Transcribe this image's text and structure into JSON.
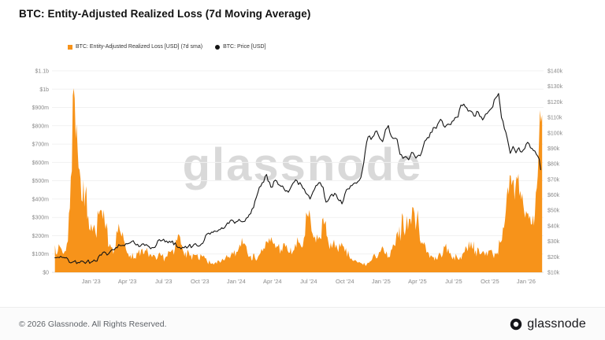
{
  "header": {
    "title": "BTC: Entity-Adjusted Realized Loss (7d Moving Average)"
  },
  "legend": {
    "items": [
      {
        "label": "BTC: Entity-Adjusted Realized Loss [USD] (7d sma)",
        "color": "#f7931a"
      },
      {
        "label": "BTC: Price [USD]",
        "color": "#141414"
      }
    ]
  },
  "watermark": "glassnode",
  "footer": {
    "copyright": "© 2026 Glassnode. All Rights Reserved.",
    "brand": "glassnode"
  },
  "chart_data": {
    "type": "area+line",
    "title": "BTC: Entity-Adjusted Realized Loss (7d Moving Average)",
    "xlim": [
      2022.73,
      2026.12
    ],
    "grid": "horizontal",
    "legend_position": "top-left",
    "x_ticks": [
      {
        "t": 2023.0,
        "label": "Jan '23"
      },
      {
        "t": 2023.25,
        "label": "Apr '23"
      },
      {
        "t": 2023.5,
        "label": "Jul '23"
      },
      {
        "t": 2023.75,
        "label": "Oct '23"
      },
      {
        "t": 2024.0,
        "label": "Jan '24"
      },
      {
        "t": 2024.25,
        "label": "Apr '24"
      },
      {
        "t": 2024.5,
        "label": "Jul '24"
      },
      {
        "t": 2024.75,
        "label": "Oct '24"
      },
      {
        "t": 2025.0,
        "label": "Jan '25"
      },
      {
        "t": 2025.25,
        "label": "Apr '25"
      },
      {
        "t": 2025.5,
        "label": "Jul '25"
      },
      {
        "t": 2025.75,
        "label": "Oct '25"
      },
      {
        "t": 2026.0,
        "label": "Jan '26"
      }
    ],
    "left_axis": {
      "unit": "USD",
      "lim": [
        0,
        1100
      ],
      "ticks": [
        {
          "v": 0,
          "label": "$0"
        },
        {
          "v": 100,
          "label": "$100m"
        },
        {
          "v": 200,
          "label": "$200m"
        },
        {
          "v": 300,
          "label": "$300m"
        },
        {
          "v": 400,
          "label": "$400m"
        },
        {
          "v": 500,
          "label": "$500m"
        },
        {
          "v": 600,
          "label": "$600m"
        },
        {
          "v": 700,
          "label": "$700m"
        },
        {
          "v": 800,
          "label": "$800m"
        },
        {
          "v": 900,
          "label": "$900m"
        },
        {
          "v": 1000,
          "label": "$1b"
        },
        {
          "v": 1100,
          "label": "$1.1b"
        }
      ]
    },
    "right_axis": {
      "unit": "USD",
      "lim": [
        10,
        140
      ],
      "ticks": [
        {
          "v": 10,
          "label": "$10k"
        },
        {
          "v": 20,
          "label": "$20k"
        },
        {
          "v": 30,
          "label": "$30k"
        },
        {
          "v": 40,
          "label": "$40k"
        },
        {
          "v": 50,
          "label": "$50k"
        },
        {
          "v": 60,
          "label": "$60k"
        },
        {
          "v": 70,
          "label": "$70k"
        },
        {
          "v": 80,
          "label": "$80k"
        },
        {
          "v": 90,
          "label": "$90k"
        },
        {
          "v": 100,
          "label": "$100k"
        },
        {
          "v": 110,
          "label": "$110k"
        },
        {
          "v": 120,
          "label": "$120k"
        },
        {
          "v": 130,
          "label": "$130k"
        },
        {
          "v": 140,
          "label": "$140k"
        }
      ]
    },
    "series": [
      {
        "name": "BTC: Entity-Adjusted Realized Loss [USD] (7d sma)",
        "type": "area",
        "axis": "left",
        "unit": "USD millions",
        "color": "#f7931a",
        "points": [
          [
            2022.75,
            150
          ],
          [
            2022.77,
            115
          ],
          [
            2022.79,
            135
          ],
          [
            2022.81,
            100
          ],
          [
            2022.84,
            170
          ],
          [
            2022.86,
            520
          ],
          [
            2022.88,
            1005
          ],
          [
            2022.9,
            810
          ],
          [
            2022.92,
            560
          ],
          [
            2022.94,
            385
          ],
          [
            2022.96,
            430
          ],
          [
            2022.98,
            310
          ],
          [
            2023.0,
            265
          ],
          [
            2023.03,
            215
          ],
          [
            2023.06,
            335
          ],
          [
            2023.08,
            290
          ],
          [
            2023.1,
            235
          ],
          [
            2023.13,
            155
          ],
          [
            2023.16,
            130
          ],
          [
            2023.19,
            265
          ],
          [
            2023.21,
            195
          ],
          [
            2023.24,
            125
          ],
          [
            2023.27,
            95
          ],
          [
            2023.3,
            78
          ],
          [
            2023.33,
            125
          ],
          [
            2023.36,
            98
          ],
          [
            2023.39,
            112
          ],
          [
            2023.42,
            82
          ],
          [
            2023.45,
            68
          ],
          [
            2023.48,
            92
          ],
          [
            2023.51,
            78
          ],
          [
            2023.54,
            112
          ],
          [
            2023.57,
            96
          ],
          [
            2023.6,
            208
          ],
          [
            2023.62,
            152
          ],
          [
            2023.65,
            112
          ],
          [
            2023.68,
            88
          ],
          [
            2023.71,
            96
          ],
          [
            2023.74,
            72
          ],
          [
            2023.77,
            86
          ],
          [
            2023.8,
            58
          ],
          [
            2023.83,
            46
          ],
          [
            2023.86,
            56
          ],
          [
            2023.89,
            52
          ],
          [
            2023.92,
            66
          ],
          [
            2023.95,
            86
          ],
          [
            2023.98,
            98
          ],
          [
            2024.01,
            112
          ],
          [
            2024.04,
            188
          ],
          [
            2024.07,
            142
          ],
          [
            2024.1,
            92
          ],
          [
            2024.13,
            78
          ],
          [
            2024.16,
            96
          ],
          [
            2024.19,
            132
          ],
          [
            2024.22,
            158
          ],
          [
            2024.25,
            168
          ],
          [
            2024.28,
            142
          ],
          [
            2024.31,
            128
          ],
          [
            2024.34,
            138
          ],
          [
            2024.37,
            108
          ],
          [
            2024.4,
            122
          ],
          [
            2024.43,
            162
          ],
          [
            2024.46,
            142
          ],
          [
            2024.49,
            312
          ],
          [
            2024.52,
            225
          ],
          [
            2024.55,
            162
          ],
          [
            2024.58,
            185
          ],
          [
            2024.6,
            298
          ],
          [
            2024.63,
            192
          ],
          [
            2024.66,
            132
          ],
          [
            2024.69,
            152
          ],
          [
            2024.72,
            138
          ],
          [
            2024.75,
            112
          ],
          [
            2024.78,
            88
          ],
          [
            2024.81,
            62
          ],
          [
            2024.84,
            52
          ],
          [
            2024.87,
            46
          ],
          [
            2024.9,
            42
          ],
          [
            2024.93,
            62
          ],
          [
            2024.96,
            88
          ],
          [
            2025.0,
            122
          ],
          [
            2025.03,
            98
          ],
          [
            2025.06,
            82
          ],
          [
            2025.09,
            148
          ],
          [
            2025.12,
            188
          ],
          [
            2025.15,
            308
          ],
          [
            2025.17,
            238
          ],
          [
            2025.2,
            292
          ],
          [
            2025.23,
            322
          ],
          [
            2025.26,
            252
          ],
          [
            2025.29,
            152
          ],
          [
            2025.32,
            112
          ],
          [
            2025.35,
            88
          ],
          [
            2025.38,
            72
          ],
          [
            2025.41,
            98
          ],
          [
            2025.44,
            138
          ],
          [
            2025.47,
            102
          ],
          [
            2025.5,
            88
          ],
          [
            2025.53,
            72
          ],
          [
            2025.56,
            98
          ],
          [
            2025.59,
            132
          ],
          [
            2025.62,
            168
          ],
          [
            2025.65,
            122
          ],
          [
            2025.68,
            98
          ],
          [
            2025.71,
            108
          ],
          [
            2025.74,
            118
          ],
          [
            2025.77,
            98
          ],
          [
            2025.8,
            108
          ],
          [
            2025.82,
            162
          ],
          [
            2025.84,
            245
          ],
          [
            2025.86,
            335
          ],
          [
            2025.88,
            425
          ],
          [
            2025.9,
            475
          ],
          [
            2025.92,
            395
          ],
          [
            2025.94,
            508
          ],
          [
            2025.96,
            445
          ],
          [
            2025.98,
            372
          ],
          [
            2026.0,
            335
          ],
          [
            2026.02,
            292
          ],
          [
            2026.04,
            262
          ],
          [
            2026.06,
            315
          ],
          [
            2026.08,
            525
          ],
          [
            2026.095,
            885
          ],
          [
            2026.11,
            860
          ]
        ]
      },
      {
        "name": "BTC: Price [USD]",
        "type": "line",
        "axis": "right",
        "unit": "USD thousands",
        "color": "#141414",
        "points": [
          [
            2022.75,
            19.4
          ],
          [
            2022.79,
            20.3
          ],
          [
            2022.82,
            19.3
          ],
          [
            2022.85,
            16.4
          ],
          [
            2022.88,
            16.9
          ],
          [
            2022.91,
            16.4
          ],
          [
            2022.94,
            17.2
          ],
          [
            2022.97,
            16.8
          ],
          [
            2023.0,
            16.6
          ],
          [
            2023.03,
            17.2
          ],
          [
            2023.06,
            21.2
          ],
          [
            2023.09,
            23.2
          ],
          [
            2023.12,
            21.9
          ],
          [
            2023.16,
            24.6
          ],
          [
            2023.19,
            27.9
          ],
          [
            2023.22,
            27.4
          ],
          [
            2023.25,
            28.4
          ],
          [
            2023.28,
            29.9
          ],
          [
            2023.31,
            27.6
          ],
          [
            2023.34,
            26.9
          ],
          [
            2023.37,
            27.3
          ],
          [
            2023.4,
            26.5
          ],
          [
            2023.43,
            25.9
          ],
          [
            2023.46,
            30.4
          ],
          [
            2023.49,
            30.6
          ],
          [
            2023.52,
            30.2
          ],
          [
            2023.55,
            29.3
          ],
          [
            2023.58,
            29.1
          ],
          [
            2023.61,
            26.1
          ],
          [
            2023.64,
            25.8
          ],
          [
            2023.67,
            26.6
          ],
          [
            2023.7,
            26.8
          ],
          [
            2023.73,
            27.2
          ],
          [
            2023.76,
            28.3
          ],
          [
            2023.79,
            33.8
          ],
          [
            2023.82,
            34.6
          ],
          [
            2023.85,
            36.7
          ],
          [
            2023.88,
            37.4
          ],
          [
            2023.91,
            38.2
          ],
          [
            2023.94,
            41.9
          ],
          [
            2023.97,
            43.8
          ],
          [
            2024.0,
            42.6
          ],
          [
            2024.03,
            43.1
          ],
          [
            2024.06,
            42.9
          ],
          [
            2024.09,
            47.2
          ],
          [
            2024.12,
            51.8
          ],
          [
            2024.15,
            61.5
          ],
          [
            2024.18,
            67.8
          ],
          [
            2024.21,
            73.1
          ],
          [
            2024.24,
            64.9
          ],
          [
            2024.27,
            69.5
          ],
          [
            2024.3,
            66.2
          ],
          [
            2024.33,
            63.9
          ],
          [
            2024.36,
            61.7
          ],
          [
            2024.39,
            67.3
          ],
          [
            2024.42,
            69.0
          ],
          [
            2024.45,
            66.3
          ],
          [
            2024.48,
            61.2
          ],
          [
            2024.51,
            57.3
          ],
          [
            2024.54,
            63.5
          ],
          [
            2024.57,
            67.8
          ],
          [
            2024.6,
            64.8
          ],
          [
            2024.62,
            55.3
          ],
          [
            2024.65,
            59.4
          ],
          [
            2024.68,
            61.0
          ],
          [
            2024.71,
            56.2
          ],
          [
            2024.73,
            54.2
          ],
          [
            2024.76,
            63.2
          ],
          [
            2024.79,
            65.9
          ],
          [
            2024.82,
            67.7
          ],
          [
            2024.85,
            69.4
          ],
          [
            2024.87,
            75.6
          ],
          [
            2024.89,
            88.0
          ],
          [
            2024.91,
            97.4
          ],
          [
            2024.93,
            95.7
          ],
          [
            2024.95,
            98.1
          ],
          [
            2024.97,
            101.2
          ],
          [
            2024.99,
            96.5
          ],
          [
            2025.01,
            94.3
          ],
          [
            2025.03,
            102.1
          ],
          [
            2025.05,
            104.7
          ],
          [
            2025.07,
            97.8
          ],
          [
            2025.09,
            96.4
          ],
          [
            2025.11,
            95.8
          ],
          [
            2025.13,
            86.1
          ],
          [
            2025.16,
            84.3
          ],
          [
            2025.19,
            82.6
          ],
          [
            2025.21,
            87.4
          ],
          [
            2025.24,
            83.7
          ],
          [
            2025.27,
            85.2
          ],
          [
            2025.3,
            94.6
          ],
          [
            2025.33,
            96.9
          ],
          [
            2025.36,
            103.4
          ],
          [
            2025.38,
            102.9
          ],
          [
            2025.41,
            108.7
          ],
          [
            2025.44,
            103.6
          ],
          [
            2025.47,
            105.4
          ],
          [
            2025.5,
            107.9
          ],
          [
            2025.53,
            110.2
          ],
          [
            2025.55,
            117.9
          ],
          [
            2025.58,
            116.8
          ],
          [
            2025.61,
            114.3
          ],
          [
            2025.64,
            110.9
          ],
          [
            2025.67,
            113.4
          ],
          [
            2025.7,
            108.3
          ],
          [
            2025.73,
            112.4
          ],
          [
            2025.76,
            115.7
          ],
          [
            2025.79,
            122.6
          ],
          [
            2025.81,
            125.4
          ],
          [
            2025.83,
            109.8
          ],
          [
            2025.85,
            102.7
          ],
          [
            2025.87,
            96.3
          ],
          [
            2025.89,
            86.8
          ],
          [
            2025.91,
            91.2
          ],
          [
            2025.93,
            87.1
          ],
          [
            2025.95,
            90.4
          ],
          [
            2025.97,
            87.6
          ],
          [
            2025.99,
            89.8
          ],
          [
            2026.01,
            93.9
          ],
          [
            2026.03,
            90.3
          ],
          [
            2026.05,
            88.6
          ],
          [
            2026.07,
            86.2
          ],
          [
            2026.09,
            83.0
          ],
          [
            2026.1,
            76.2
          ]
        ]
      }
    ]
  }
}
